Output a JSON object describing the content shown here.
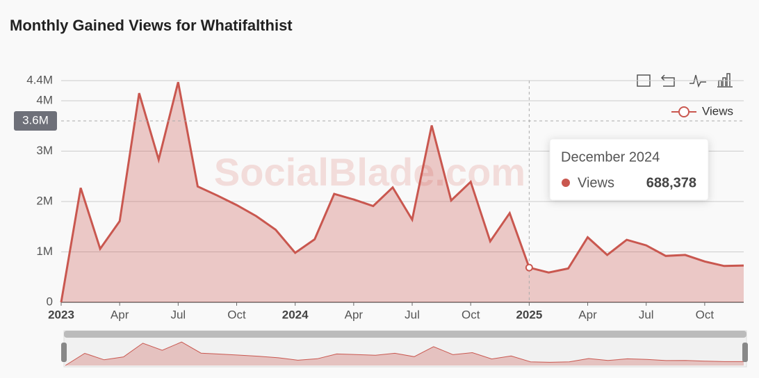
{
  "chart_data": {
    "type": "line",
    "title": "Monthly Gained Views for Whatifalthist",
    "watermark": "SocialBlade.com",
    "categories": [
      "2023",
      null,
      null,
      "Apr",
      null,
      null,
      "Jul",
      null,
      null,
      "Oct",
      null,
      null,
      "2024",
      null,
      null,
      "Apr",
      null,
      null,
      "Jul",
      null,
      null,
      "Oct",
      null,
      null,
      "2025",
      null,
      null,
      "Apr",
      null,
      null,
      "Jul",
      null,
      null,
      "Oct",
      null,
      null
    ],
    "series": [
      {
        "name": "Views",
        "color": "#c9574f",
        "values": [
          0,
          2270000,
          1060000,
          1610000,
          4150000,
          2830000,
          4370000,
          2300000,
          2120000,
          1930000,
          1710000,
          1440000,
          980000,
          1250000,
          2150000,
          2040000,
          1910000,
          2280000,
          1640000,
          3510000,
          2020000,
          2390000,
          1210000,
          1770000,
          688378,
          590000,
          670000,
          1290000,
          940000,
          1240000,
          1130000,
          920000,
          940000,
          810000,
          720000,
          730000
        ]
      }
    ],
    "ylim": [
      0,
      4400000
    ],
    "yticks": [
      0,
      {
        "value": 1000000,
        "label": "1M"
      },
      {
        "value": 2000000,
        "label": "2M"
      },
      {
        "value": 3000000,
        "label": "3M"
      },
      {
        "value": 4000000,
        "label": "4M"
      },
      {
        "value": 4400000,
        "label": "4.4M"
      }
    ],
    "grid": true,
    "axis_pointer": {
      "value": 3600000,
      "label": "3.6M"
    },
    "tooltip": {
      "title": "December 2024",
      "series": "Views",
      "value": 688378,
      "value_label": "688,378"
    }
  }
}
